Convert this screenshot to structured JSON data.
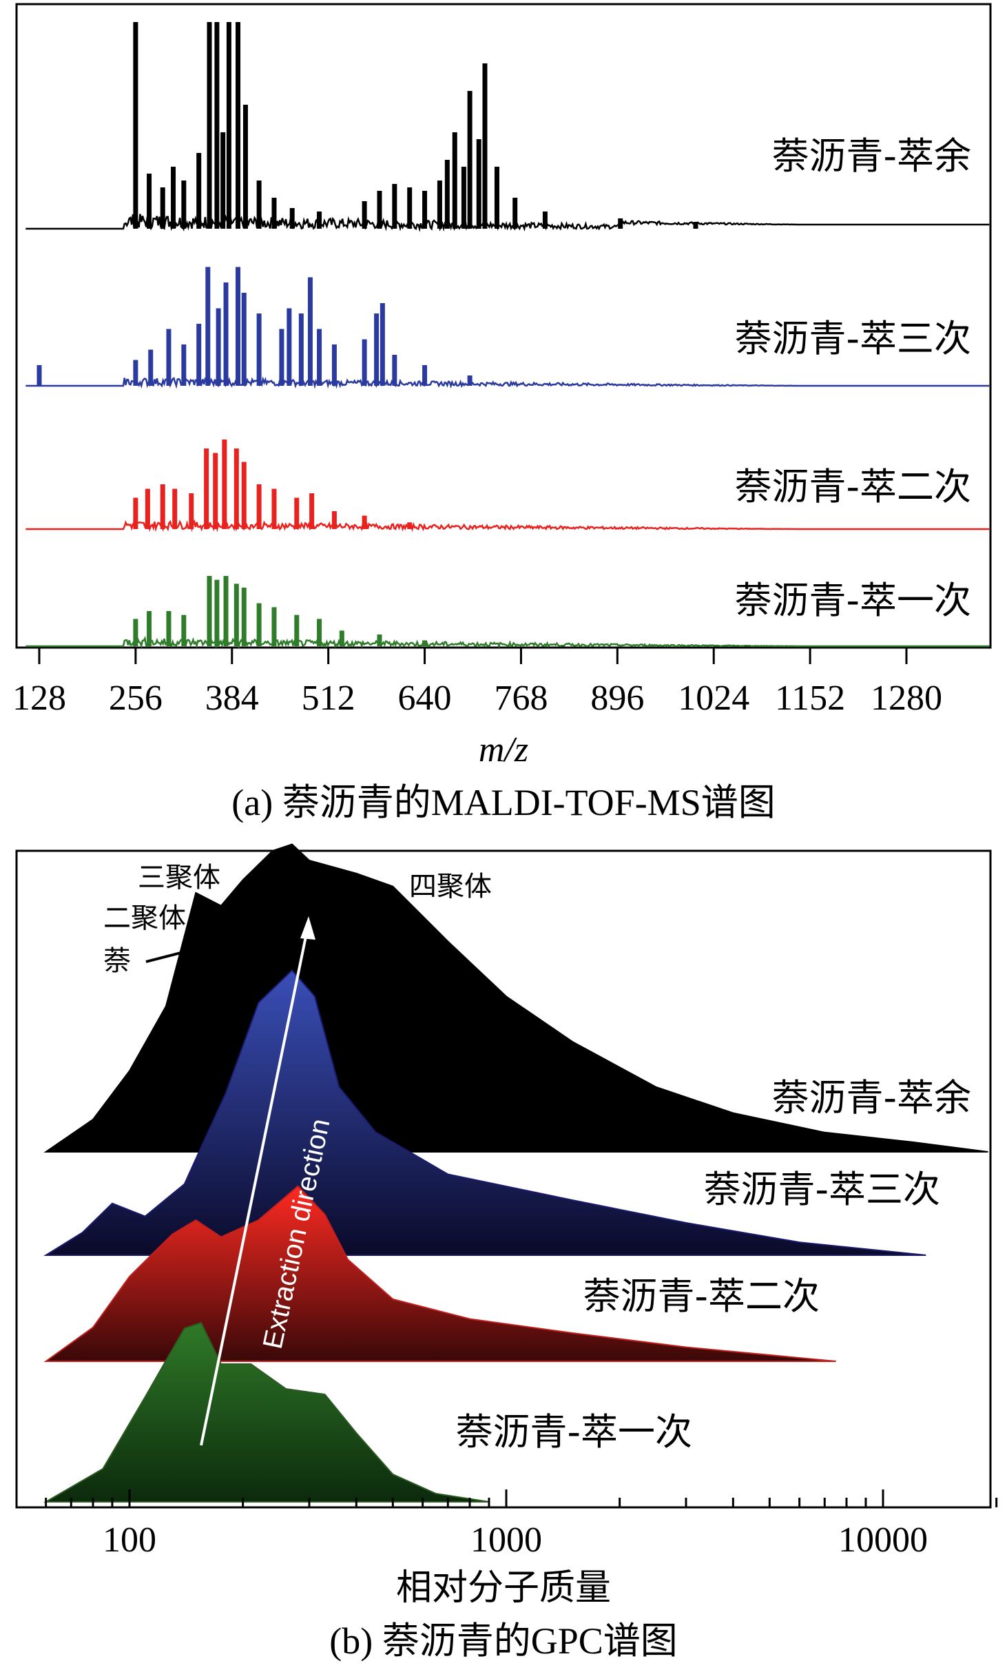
{
  "chart_data": [
    {
      "type": "line",
      "subtype": "stacked mass spectra",
      "caption": "(a) 萘沥青的MALDI-TOF-MS谱图",
      "xlabel": "m/z",
      "xticks": [
        128,
        256,
        384,
        512,
        640,
        768,
        896,
        1024,
        1152,
        1280
      ],
      "xlim": [
        100,
        1400
      ],
      "grid": false,
      "series": [
        {
          "name": "萘沥青-萃余",
          "color": "#000000",
          "peaks": [
            [
              256,
              300
            ],
            [
              274,
              80
            ],
            [
              292,
              60
            ],
            [
              306,
              90
            ],
            [
              320,
              70
            ],
            [
              340,
              110
            ],
            [
              354,
              300
            ],
            [
              364,
              300
            ],
            [
              372,
              140
            ],
            [
              380,
              300
            ],
            [
              392,
              300
            ],
            [
              402,
              180
            ],
            [
              420,
              70
            ],
            [
              440,
              45
            ],
            [
              464,
              30
            ],
            [
              500,
              25
            ],
            [
              560,
              40
            ],
            [
              580,
              55
            ],
            [
              600,
              65
            ],
            [
              620,
              60
            ],
            [
              640,
              55
            ],
            [
              660,
              70
            ],
            [
              670,
              100
            ],
            [
              680,
              140
            ],
            [
              692,
              90
            ],
            [
              700,
              200
            ],
            [
              712,
              130
            ],
            [
              720,
              240
            ],
            [
              736,
              90
            ],
            [
              760,
              45
            ],
            [
              800,
              25
            ],
            [
              900,
              15
            ],
            [
              1000,
              10
            ]
          ]
        },
        {
          "name": "萘沥青-萃三次",
          "color": "#2b3a9e",
          "peaks": [
            [
              128,
              40
            ],
            [
              256,
              50
            ],
            [
              276,
              70
            ],
            [
              300,
              110
            ],
            [
              320,
              80
            ],
            [
              340,
              120
            ],
            [
              352,
              230
            ],
            [
              366,
              150
            ],
            [
              376,
              200
            ],
            [
              392,
              230
            ],
            [
              400,
              180
            ],
            [
              420,
              140
            ],
            [
              450,
              110
            ],
            [
              460,
              150
            ],
            [
              476,
              140
            ],
            [
              488,
              210
            ],
            [
              500,
              110
            ],
            [
              520,
              80
            ],
            [
              560,
              90
            ],
            [
              576,
              140
            ],
            [
              584,
              160
            ],
            [
              600,
              60
            ],
            [
              640,
              40
            ],
            [
              700,
              20
            ]
          ]
        },
        {
          "name": "萘沥青-萃二次",
          "color": "#e8231f",
          "peaks": [
            [
              256,
              70
            ],
            [
              272,
              90
            ],
            [
              292,
              100
            ],
            [
              308,
              90
            ],
            [
              330,
              80
            ],
            [
              350,
              180
            ],
            [
              362,
              170
            ],
            [
              374,
              200
            ],
            [
              390,
              180
            ],
            [
              400,
              150
            ],
            [
              420,
              100
            ],
            [
              440,
              90
            ],
            [
              470,
              70
            ],
            [
              490,
              80
            ],
            [
              520,
              40
            ],
            [
              560,
              30
            ],
            [
              620,
              15
            ]
          ]
        },
        {
          "name": "萘沥青-萃一次",
          "color": "#2f7d2a",
          "peaks": [
            [
              256,
              70
            ],
            [
              274,
              90
            ],
            [
              300,
              90
            ],
            [
              320,
              80
            ],
            [
              354,
              180
            ],
            [
              364,
              170
            ],
            [
              376,
              180
            ],
            [
              390,
              160
            ],
            [
              400,
              150
            ],
            [
              420,
              110
            ],
            [
              440,
              100
            ],
            [
              470,
              80
            ],
            [
              500,
              70
            ],
            [
              530,
              40
            ],
            [
              580,
              30
            ],
            [
              640,
              15
            ]
          ]
        }
      ]
    },
    {
      "type": "area",
      "subtype": "stacked GPC curves",
      "caption": "(b) 萘沥青的GPC谱图",
      "xlabel": "相对分子质量",
      "xscale": "log",
      "xticks": [
        100,
        1000,
        10000
      ],
      "xlim": [
        55,
        20000
      ],
      "annotations": [
        {
          "text": "萘",
          "x": 150
        },
        {
          "text": "二聚体",
          "x": 200
        },
        {
          "text": "三聚体",
          "x": 260
        },
        {
          "text": "四聚体",
          "x": 430
        }
      ],
      "arrow_label": "Extraction direction",
      "series": [
        {
          "name": "萘沥青-萃余",
          "color": "#000000",
          "points": [
            [
              60,
              0.0
            ],
            [
              80,
              0.1
            ],
            [
              100,
              0.25
            ],
            [
              125,
              0.45
            ],
            [
              150,
              0.8
            ],
            [
              175,
              0.76
            ],
            [
              200,
              0.84
            ],
            [
              240,
              0.93
            ],
            [
              270,
              0.95
            ],
            [
              300,
              0.9
            ],
            [
              400,
              0.86
            ],
            [
              500,
              0.82
            ],
            [
              700,
              0.65
            ],
            [
              1000,
              0.48
            ],
            [
              1500,
              0.34
            ],
            [
              2500,
              0.2
            ],
            [
              4000,
              0.12
            ],
            [
              7000,
              0.06
            ],
            [
              12000,
              0.03
            ],
            [
              19000,
              0.0
            ]
          ]
        },
        {
          "name": "萘沥青-萃三次",
          "color": "#1c1a6e",
          "points": [
            [
              60,
              0.0
            ],
            [
              75,
              0.07
            ],
            [
              90,
              0.16
            ],
            [
              110,
              0.12
            ],
            [
              140,
              0.22
            ],
            [
              180,
              0.5
            ],
            [
              220,
              0.78
            ],
            [
              270,
              0.88
            ],
            [
              310,
              0.8
            ],
            [
              360,
              0.52
            ],
            [
              450,
              0.38
            ],
            [
              700,
              0.25
            ],
            [
              1500,
              0.17
            ],
            [
              3000,
              0.1
            ],
            [
              6000,
              0.04
            ],
            [
              13000,
              0.0
            ]
          ]
        },
        {
          "name": "萘沥青-萃二次",
          "color": "#c0201e",
          "points": [
            [
              60,
              0.0
            ],
            [
              80,
              0.12
            ],
            [
              100,
              0.3
            ],
            [
              130,
              0.45
            ],
            [
              150,
              0.5
            ],
            [
              175,
              0.44
            ],
            [
              220,
              0.5
            ],
            [
              280,
              0.62
            ],
            [
              330,
              0.52
            ],
            [
              380,
              0.36
            ],
            [
              500,
              0.22
            ],
            [
              800,
              0.15
            ],
            [
              1500,
              0.1
            ],
            [
              3000,
              0.05
            ],
            [
              7500,
              0.0
            ]
          ]
        },
        {
          "name": "萘沥青-萃一次",
          "color": "#2c5a22",
          "points": [
            [
              60,
              0.0
            ],
            [
              85,
              0.12
            ],
            [
              110,
              0.38
            ],
            [
              140,
              0.63
            ],
            [
              155,
              0.65
            ],
            [
              175,
              0.5
            ],
            [
              210,
              0.5
            ],
            [
              260,
              0.41
            ],
            [
              330,
              0.39
            ],
            [
              400,
              0.25
            ],
            [
              500,
              0.1
            ],
            [
              650,
              0.03
            ],
            [
              900,
              0.0
            ]
          ]
        }
      ]
    }
  ]
}
